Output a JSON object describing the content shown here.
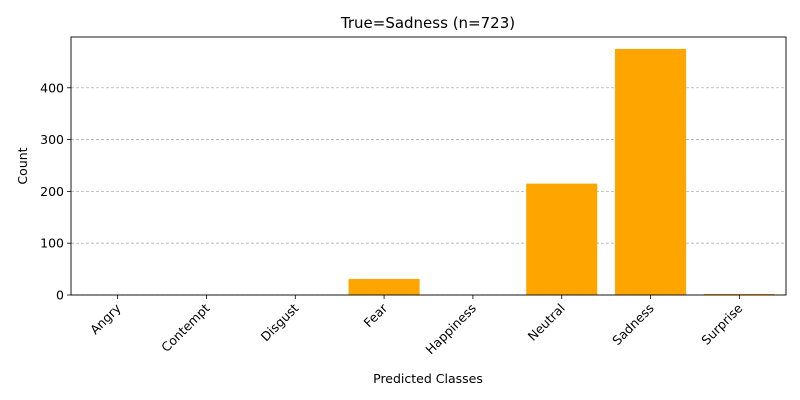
{
  "chart_data": {
    "type": "bar",
    "title": "True=Sadness  (n=723)",
    "xlabel": "Predicted Classes",
    "ylabel": "Count",
    "categories": [
      "Angry",
      "Contempt",
      "Disgust",
      "Fear",
      "Happiness",
      "Neutral",
      "Sadness",
      "Surprise"
    ],
    "values": [
      0,
      0,
      0,
      31,
      0,
      215,
      475,
      2
    ],
    "yticks": [
      0,
      100,
      200,
      300,
      400
    ],
    "ylim": [
      0,
      498
    ],
    "bar_color": "#FFA500",
    "grid": "y-dashed",
    "legend": "none"
  }
}
